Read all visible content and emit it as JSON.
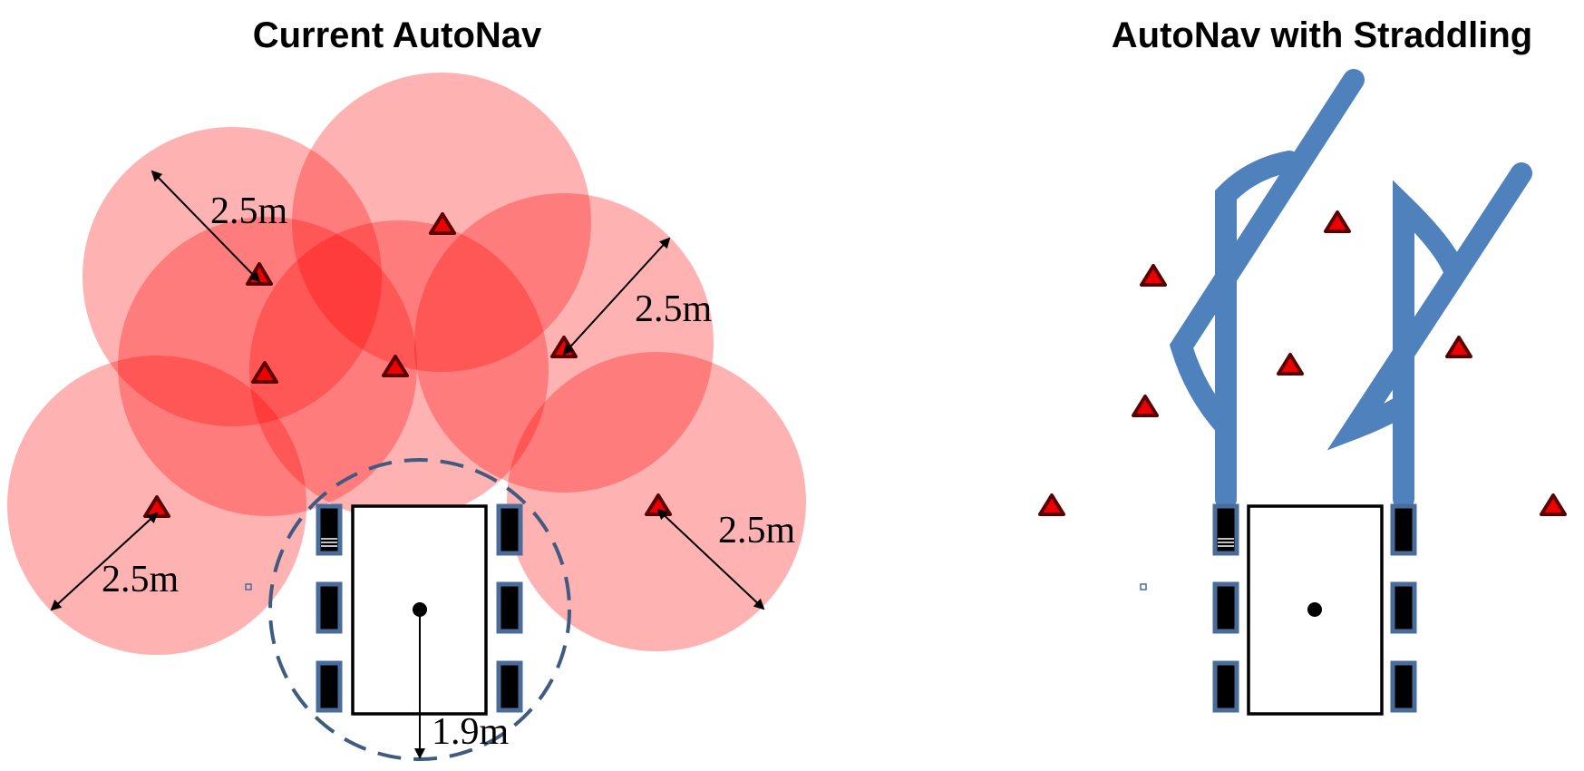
{
  "panels": {
    "left": {
      "title": "Current AutoNav",
      "radius_labels": [
        "2.5m",
        "2.5m",
        "2.5m",
        "2.5m"
      ],
      "vehicle_radius_label": "1.9m"
    },
    "right": {
      "title": "AutoNav with Straddling"
    }
  },
  "colors": {
    "obstacle_zone": "#ff0000",
    "obstacle": "#ee0000",
    "path": "#4f81bd",
    "wheel_outline": "#4a6c9b",
    "vehicle_boundary": "#3f5b80"
  }
}
